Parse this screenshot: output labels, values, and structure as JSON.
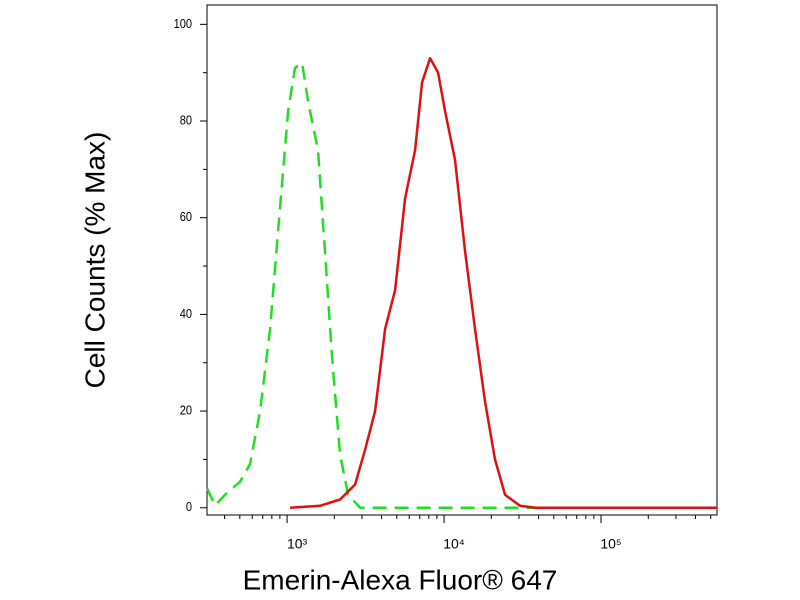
{
  "chart_data": {
    "type": "line",
    "xlabel": "Emerin-Alexa Fluor® 647",
    "ylabel": "Cell Counts (% Max)",
    "xscale": "log",
    "xlim": [
      309,
      548000
    ],
    "ylim": [
      -1.5,
      104
    ],
    "xticks": [
      {
        "value": 1000,
        "label": "10³"
      },
      {
        "value": 10000,
        "label": "10⁴"
      },
      {
        "value": 100000,
        "label": "10⁵"
      }
    ],
    "xminorticks": [
      400,
      500,
      600,
      700,
      800,
      900,
      2000,
      3000,
      4000,
      5000,
      6000,
      7000,
      8000,
      9000,
      20000,
      30000,
      40000,
      50000,
      60000,
      70000,
      80000,
      90000,
      200000,
      300000,
      400000,
      500000
    ],
    "yticks": [
      0,
      20,
      40,
      60,
      80,
      100
    ],
    "yminorticks": [
      10,
      30,
      50,
      70,
      90
    ],
    "series": [
      {
        "color": "#22dd22",
        "dash": true,
        "x": [
          309,
          348,
          403,
          502,
          581,
          673,
          780,
          902,
          1015,
          1124,
          1246,
          1361,
          1575,
          1745,
          1935,
          2177,
          2448,
          2917,
          548000
        ],
        "values": [
          4,
          0.5,
          2.7,
          5.4,
          9,
          20,
          37,
          62,
          82,
          91,
          92,
          84,
          74,
          53,
          31,
          11,
          2.7,
          0,
          0
        ]
      },
      {
        "color": "#dd1111",
        "dash": false,
        "x": [
          1045,
          1622,
          2177,
          2711,
          3139,
          3635,
          4210,
          4875,
          5645,
          6537,
          7244,
          8146,
          9162,
          10150,
          11750,
          13610,
          15750,
          18240,
          21120,
          24460,
          30490,
          38000,
          548000
        ],
        "values": [
          0,
          0.4,
          1.7,
          4.8,
          12,
          20,
          37,
          45,
          64,
          74,
          88,
          93,
          90,
          82,
          72,
          53,
          37,
          22,
          10,
          2.7,
          0.4,
          0,
          0
        ]
      }
    ]
  }
}
